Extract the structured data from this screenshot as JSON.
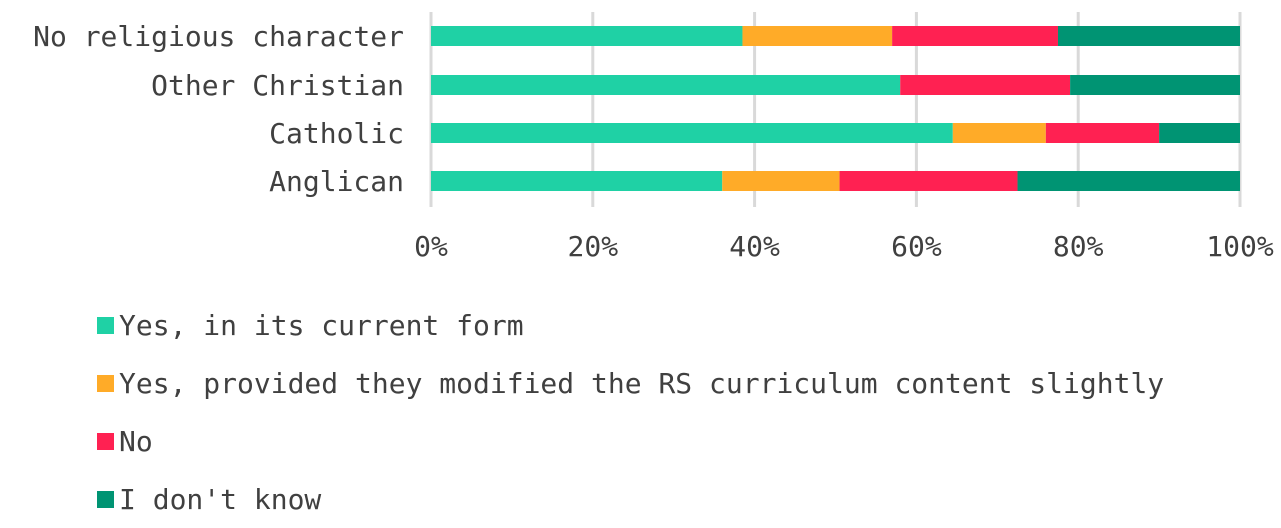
{
  "chart_data": {
    "type": "bar",
    "orientation": "horizontal",
    "stacked": true,
    "categories": [
      "No religious character",
      "Other Christian",
      "Catholic",
      "Anglican"
    ],
    "series": [
      {
        "name": "Yes, in its current form",
        "color": "#1fd1a5",
        "values": [
          38.5,
          58,
          64.5,
          36
        ]
      },
      {
        "name": "Yes, provided they modified the RS curriculum content slightly",
        "color": "#ffab28",
        "values": [
          18.5,
          0,
          11.5,
          14.5
        ]
      },
      {
        "name": "No",
        "color": "#ff2152",
        "values": [
          20.5,
          21,
          14,
          22
        ]
      },
      {
        "name": "I don't know",
        "color": "#009473",
        "values": [
          22.5,
          21,
          10,
          27.5
        ]
      }
    ],
    "xlim": [
      0,
      100
    ],
    "x_ticks": [
      "0%",
      "20%",
      "40%",
      "60%",
      "80%",
      "100%"
    ],
    "grid": true,
    "legend_position": "bottom"
  }
}
